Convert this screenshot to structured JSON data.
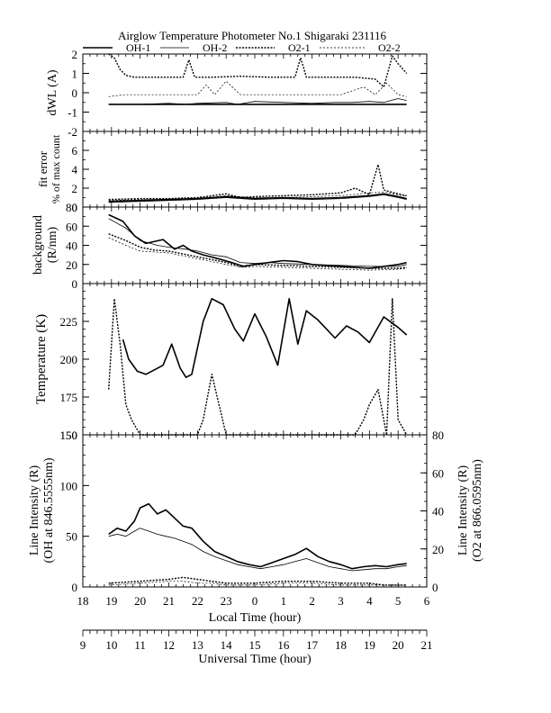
{
  "title": "Airglow Temperature Photometer No.1  Shigaraki  231116",
  "legend": [
    {
      "label": "OH-1",
      "style": "solid-thick"
    },
    {
      "label": "OH-2",
      "style": "solid-thin"
    },
    {
      "label": "O2-1",
      "style": "dashed-thick"
    },
    {
      "label": "O2-2",
      "style": "dashed-thin"
    }
  ],
  "axes": {
    "local_time_label": "Local Time (hour)",
    "universal_time_label": "Universal Time (hour)",
    "local_ticks": [
      "18",
      "19",
      "20",
      "21",
      "22",
      "23",
      "0",
      "1",
      "2",
      "3",
      "4",
      "5",
      "6"
    ],
    "ut_ticks": [
      "9",
      "10",
      "11",
      "12",
      "13",
      "14",
      "15",
      "16",
      "17",
      "18",
      "19",
      "20",
      "21"
    ]
  },
  "panels": {
    "dwl": {
      "ylabel": "dWL (A)",
      "ticks": [
        "2",
        "1",
        "0",
        "-1",
        "-2"
      ]
    },
    "fit": {
      "ylabel1": "fit error",
      "ylabel2": "% of max count",
      "ticks": [
        "6",
        "4",
        "2",
        "0"
      ]
    },
    "bg": {
      "ylabel1": "background",
      "ylabel2": "(R/nm)",
      "ticks": [
        "80",
        "60",
        "40",
        "20",
        "0"
      ]
    },
    "temp": {
      "ylabel": "Temperature (K)",
      "ticks": [
        "225",
        "200",
        "175",
        "150"
      ]
    },
    "int": {
      "ylabel_left1": "Line Intensity (R)",
      "ylabel_left2": "(OH at 846.5555nm)",
      "ylabel_right1": "Line Intensity (R)",
      "ylabel_right2": "(O2 at 866.0595nm)",
      "ticks_left": [
        "150",
        "100",
        "50",
        "0"
      ],
      "ticks_right": [
        "80",
        "60",
        "40",
        "20",
        "0"
      ]
    }
  },
  "chart_data": [
    {
      "type": "line",
      "panel": "dWL",
      "ylabel": "dWL (A)",
      "ylim": [
        -2,
        2
      ],
      "x_axis": "Universal Time (hour)",
      "series": [
        {
          "name": "OH-1",
          "x": [
            9.9,
            11,
            12,
            13,
            14,
            14.5,
            15,
            16,
            17,
            18,
            19,
            19.5,
            20,
            20.3
          ],
          "y": [
            -0.6,
            -0.6,
            -0.6,
            -0.6,
            -0.6,
            -0.6,
            -0.6,
            -0.6,
            -0.6,
            -0.6,
            -0.6,
            -0.6,
            -0.6,
            -0.6
          ]
        },
        {
          "name": "OH-2",
          "x": [
            9.9,
            11,
            12,
            12.6,
            13,
            14,
            14.4,
            15,
            16,
            17,
            17.8,
            18.4,
            19,
            19.5,
            20,
            20.3
          ],
          "y": [
            -0.6,
            -0.6,
            -0.55,
            -0.6,
            -0.55,
            -0.5,
            -0.6,
            -0.45,
            -0.5,
            -0.55,
            -0.5,
            -0.5,
            -0.45,
            -0.5,
            -0.3,
            -0.4
          ]
        },
        {
          "name": "O2-1",
          "x": [
            9.9,
            10.1,
            10.3,
            10.5,
            10.8,
            11.5,
            12.5,
            12.7,
            12.9,
            13.5,
            14.5,
            15.5,
            16.4,
            16.6,
            16.8,
            17.5,
            18.5,
            19.2,
            19.5,
            19.8,
            20,
            20.3
          ],
          "y": [
            2,
            1.8,
            1.2,
            0.9,
            0.8,
            0.8,
            0.8,
            1.7,
            0.8,
            0.8,
            0.85,
            0.8,
            0.8,
            1.8,
            0.8,
            0.8,
            0.8,
            0.7,
            0.3,
            1.9,
            1.5,
            1.0
          ]
        },
        {
          "name": "O2-2",
          "x": [
            9.9,
            10.5,
            11,
            12,
            13,
            13.3,
            13.6,
            14,
            14.5,
            15,
            16,
            17,
            18,
            18.8,
            19.2,
            19.6,
            20,
            20.3
          ],
          "y": [
            -0.2,
            -0.1,
            -0.1,
            -0.1,
            -0.1,
            0.4,
            -0.1,
            0.6,
            -0.1,
            -0.1,
            -0.1,
            -0.1,
            -0.1,
            0.3,
            -0.1,
            0.5,
            -0.1,
            -0.2
          ]
        }
      ]
    },
    {
      "type": "line",
      "panel": "fit error",
      "ylabel": "fit error % of max count",
      "ylim": [
        0,
        8
      ],
      "x_axis": "Universal Time (hour)",
      "series": [
        {
          "name": "OH-1",
          "x": [
            9.9,
            11,
            12,
            13,
            14,
            15,
            16,
            17,
            18,
            19,
            19.5,
            20,
            20.3
          ],
          "y": [
            0.6,
            0.7,
            0.8,
            0.9,
            1.1,
            0.9,
            1.0,
            0.9,
            1.0,
            1.2,
            1.4,
            1.1,
            0.9
          ]
        },
        {
          "name": "OH-2",
          "x": [
            9.9,
            11,
            12,
            13,
            14,
            15,
            16,
            17,
            18,
            19,
            19.5,
            20,
            20.3
          ],
          "y": [
            0.5,
            0.6,
            0.7,
            0.8,
            1.0,
            0.8,
            0.9,
            0.8,
            0.9,
            1.1,
            1.3,
            1.0,
            0.8
          ]
        },
        {
          "name": "O2-1",
          "x": [
            9.9,
            11,
            12,
            13,
            14,
            14.5,
            15,
            16,
            17,
            18,
            18.5,
            19,
            19.3,
            19.5,
            20,
            20.3
          ],
          "y": [
            0.8,
            0.9,
            0.9,
            1.0,
            1.4,
            1.0,
            1.1,
            1.2,
            1.3,
            1.5,
            2.0,
            1.3,
            4.5,
            1.8,
            1.4,
            1.2
          ]
        },
        {
          "name": "O2-2",
          "x": [
            9.9,
            11,
            12,
            13,
            14,
            15,
            16,
            17,
            18,
            19,
            19.5,
            20,
            20.3
          ],
          "y": [
            0.7,
            0.8,
            0.8,
            0.9,
            1.2,
            1.0,
            1.0,
            1.1,
            1.2,
            1.5,
            1.6,
            1.3,
            1.1
          ]
        }
      ]
    },
    {
      "type": "line",
      "panel": "background",
      "ylabel": "background (R/nm)",
      "ylim": [
        0,
        80
      ],
      "x_axis": "Universal Time (hour)",
      "series": [
        {
          "name": "OH-1",
          "x": [
            9.9,
            10.4,
            10.8,
            11.2,
            11.8,
            12.2,
            12.5,
            12.8,
            13.2,
            13.6,
            14.2,
            14.6,
            15,
            15.5,
            16,
            16.5,
            17,
            18,
            19,
            19.5,
            20,
            20.3
          ],
          "y": [
            72,
            65,
            50,
            42,
            46,
            36,
            40,
            34,
            30,
            27,
            22,
            18,
            20,
            22,
            24,
            23,
            20,
            18,
            16,
            18,
            20,
            22
          ]
        },
        {
          "name": "OH-2",
          "x": [
            9.9,
            10.5,
            11,
            11.6,
            12,
            12.6,
            13,
            13.5,
            14,
            14.5,
            15,
            15.5,
            16,
            17,
            18,
            19,
            20,
            20.3
          ],
          "y": [
            68,
            58,
            45,
            40,
            38,
            36,
            34,
            30,
            28,
            22,
            21,
            22,
            21,
            20,
            19,
            18,
            18,
            20
          ]
        },
        {
          "name": "O2-1",
          "x": [
            9.9,
            10.5,
            11,
            11.5,
            12,
            12.5,
            13,
            13.5,
            14,
            14.5,
            15,
            16,
            17,
            18,
            19,
            20,
            20.3
          ],
          "y": [
            52,
            45,
            38,
            35,
            34,
            31,
            28,
            25,
            22,
            18,
            20,
            19,
            18,
            17,
            16,
            16,
            17
          ]
        },
        {
          "name": "O2-2",
          "x": [
            9.9,
            10.5,
            11,
            11.5,
            12,
            12.5,
            13,
            13.5,
            14,
            14.5,
            15,
            16,
            17,
            18,
            19,
            20,
            20.3
          ],
          "y": [
            48,
            40,
            34,
            33,
            32,
            29,
            26,
            23,
            20,
            17,
            18,
            17,
            16,
            15,
            14,
            15,
            16
          ]
        }
      ]
    },
    {
      "type": "line",
      "panel": "Temperature",
      "ylabel": "Temperature (K)",
      "ylim": [
        150,
        250
      ],
      "x_axis": "Universal Time (hour)",
      "series": [
        {
          "name": "OH-1",
          "x": [
            10.4,
            10.6,
            10.9,
            11.2,
            11.5,
            11.8,
            12.1,
            12.4,
            12.6,
            12.8,
            13.2,
            13.5,
            13.9,
            14.3,
            14.6,
            15,
            15.4,
            15.8,
            16.2,
            16.5,
            16.8,
            17.2,
            17.8,
            18.2,
            18.6,
            19,
            19.5,
            20,
            20.3
          ],
          "y": [
            213,
            200,
            192,
            190,
            193,
            196,
            210,
            194,
            188,
            190,
            225,
            240,
            236,
            220,
            212,
            230,
            215,
            196,
            240,
            210,
            232,
            226,
            214,
            222,
            218,
            211,
            228,
            221,
            216
          ]
        },
        {
          "name": "O2-1",
          "x": [
            9.9,
            10.1,
            10.3,
            10.5,
            10.7,
            11,
            11.5,
            12,
            12.5,
            13,
            13.2,
            13.5,
            14,
            14.5,
            15,
            16,
            17,
            18,
            18.5,
            18.8,
            19,
            19.3,
            19.6,
            19.8,
            20,
            20.3
          ],
          "y": [
            180,
            240,
            210,
            170,
            160,
            150,
            150,
            150,
            150,
            150,
            160,
            190,
            150,
            150,
            150,
            150,
            150,
            150,
            150,
            160,
            170,
            180,
            150,
            240,
            160,
            150
          ]
        }
      ]
    },
    {
      "type": "line",
      "panel": "Line Intensity",
      "ylabel": "Line Intensity (R) (OH at 846.5555nm)",
      "y2label": "Line Intensity (R) (O2 at 866.0595nm)",
      "ylim": [
        0,
        150
      ],
      "y2lim": [
        0,
        80
      ],
      "x_axis": "Universal Time (hour)",
      "series": [
        {
          "name": "OH-1",
          "axis": "left",
          "x": [
            9.9,
            10.2,
            10.5,
            10.8,
            11,
            11.3,
            11.6,
            11.9,
            12.2,
            12.5,
            12.8,
            13.2,
            13.6,
            14,
            14.4,
            14.8,
            15.2,
            15.6,
            16,
            16.4,
            16.8,
            17.2,
            17.6,
            18,
            18.4,
            18.8,
            19.2,
            19.6,
            20,
            20.3
          ],
          "y": [
            52,
            58,
            55,
            65,
            78,
            82,
            72,
            76,
            68,
            60,
            58,
            45,
            35,
            30,
            25,
            22,
            20,
            24,
            28,
            32,
            38,
            30,
            25,
            22,
            18,
            20,
            21,
            20,
            22,
            23
          ]
        },
        {
          "name": "OH-2",
          "axis": "left",
          "x": [
            9.9,
            10.2,
            10.5,
            10.8,
            11,
            11.3,
            11.6,
            11.9,
            12.2,
            12.5,
            12.8,
            13.2,
            13.6,
            14,
            14.4,
            14.8,
            15.2,
            15.6,
            16,
            16.4,
            16.8,
            17.2,
            17.6,
            18,
            18.4,
            18.8,
            19.2,
            19.6,
            20,
            20.3
          ],
          "y": [
            50,
            52,
            50,
            55,
            58,
            55,
            52,
            50,
            48,
            45,
            42,
            35,
            30,
            26,
            22,
            20,
            18,
            20,
            22,
            25,
            28,
            24,
            20,
            18,
            16,
            17,
            18,
            18,
            20,
            21
          ]
        },
        {
          "name": "O2-1",
          "axis": "right",
          "x": [
            9.9,
            11,
            12,
            12.5,
            13,
            13.5,
            14,
            15,
            16,
            17,
            18,
            19,
            19.5,
            20,
            20.3
          ],
          "y": [
            2,
            3,
            4,
            5,
            4,
            3,
            2,
            2,
            3,
            3,
            2,
            2,
            1,
            1,
            1
          ]
        },
        {
          "name": "O2-2",
          "axis": "right",
          "x": [
            9.9,
            11,
            12,
            12.5,
            13,
            13.5,
            14,
            15,
            16,
            17,
            18,
            19,
            19.5,
            20,
            20.3
          ],
          "y": [
            1,
            2,
            3,
            3,
            2,
            2,
            1,
            1,
            2,
            2,
            1,
            1,
            1,
            1,
            1
          ]
        }
      ]
    }
  ]
}
